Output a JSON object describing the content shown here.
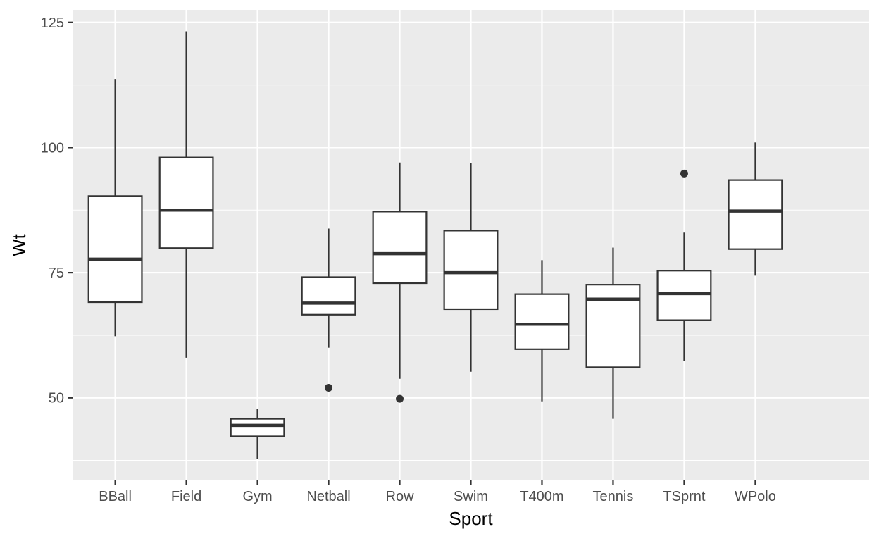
{
  "chart_data": {
    "type": "boxplot",
    "xlabel": "Sport",
    "ylabel": "Wt",
    "ylim": [
      33.5,
      127.5
    ],
    "yticks": [
      50,
      75,
      100,
      125
    ],
    "y_minor_ticks": [
      37.5,
      62.5,
      87.5,
      112.5
    ],
    "grid": true,
    "background": "#EBEBEB",
    "grid_color": "#FFFFFF",
    "box_stroke": "#333333",
    "box_fill": "#FFFFFF",
    "categories": [
      "BBall",
      "Field",
      "Gym",
      "Netball",
      "Row",
      "Swim",
      "T400m",
      "Tennis",
      "TSprnt",
      "WPolo"
    ],
    "boxes": [
      {
        "category": "BBall",
        "whisker_low": 62.3,
        "q1": 69.1,
        "median": 77.7,
        "q3": 90.3,
        "whisker_high": 113.7,
        "outliers": []
      },
      {
        "category": "Field",
        "whisker_low": 58.0,
        "q1": 79.9,
        "median": 87.5,
        "q3": 98.0,
        "whisker_high": 123.2,
        "outliers": []
      },
      {
        "category": "Gym",
        "whisker_low": 37.8,
        "q1": 42.3,
        "median": 44.5,
        "q3": 45.8,
        "whisker_high": 47.8,
        "outliers": []
      },
      {
        "category": "Netball",
        "whisker_low": 60.0,
        "q1": 66.6,
        "median": 68.9,
        "q3": 74.1,
        "whisker_high": 83.8,
        "outliers": [
          52.0
        ]
      },
      {
        "category": "Row",
        "whisker_low": 53.8,
        "q1": 72.9,
        "median": 78.8,
        "q3": 87.2,
        "whisker_high": 97.0,
        "outliers": [
          49.8
        ]
      },
      {
        "category": "Swim",
        "whisker_low": 55.2,
        "q1": 67.7,
        "median": 75.0,
        "q3": 83.4,
        "whisker_high": 96.9,
        "outliers": []
      },
      {
        "category": "T400m",
        "whisker_low": 49.3,
        "q1": 59.7,
        "median": 64.7,
        "q3": 70.7,
        "whisker_high": 77.5,
        "outliers": []
      },
      {
        "category": "Tennis",
        "whisker_low": 45.8,
        "q1": 56.1,
        "median": 69.7,
        "q3": 72.6,
        "whisker_high": 80.0,
        "outliers": []
      },
      {
        "category": "TSprnt",
        "whisker_low": 57.3,
        "q1": 65.5,
        "median": 70.8,
        "q3": 75.4,
        "whisker_high": 83.0,
        "outliers": [
          94.8
        ]
      },
      {
        "category": "WPolo",
        "whisker_low": 74.4,
        "q1": 79.7,
        "median": 87.3,
        "q3": 93.5,
        "whisker_high": 101.0,
        "outliers": []
      }
    ]
  }
}
